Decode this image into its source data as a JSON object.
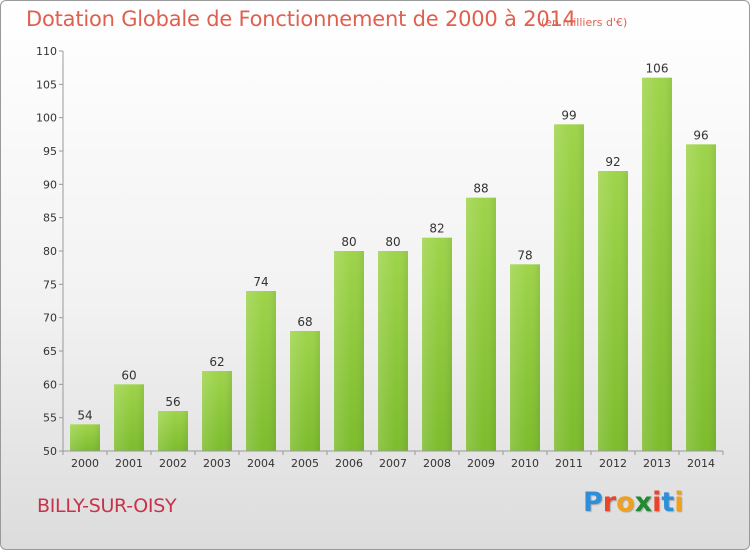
{
  "header": {
    "title": "Dotation Globale de Fonctionnement de 2000 à 2014",
    "unit": "(en milliers d'€)"
  },
  "footer": {
    "commune": "BILLY-SUR-OISY",
    "logo_letters": [
      "P",
      "r",
      "o",
      "x",
      "i",
      "t",
      "i"
    ],
    "logo_colors": [
      "#2e8ed8",
      "#e8452c",
      "#f0a020",
      "#1f8a2e",
      "#e8452c",
      "#2e8ed8",
      "#f0a020"
    ]
  },
  "chart_data": {
    "type": "bar",
    "categories": [
      "2000",
      "2001",
      "2002",
      "2003",
      "2004",
      "2005",
      "2006",
      "2007",
      "2008",
      "2009",
      "2010",
      "2011",
      "2012",
      "2013",
      "2014"
    ],
    "values": [
      54,
      60,
      56,
      62,
      74,
      68,
      80,
      80,
      82,
      88,
      78,
      99,
      92,
      106,
      96
    ],
    "ylim": [
      50,
      110
    ],
    "yticks": [
      50,
      55,
      60,
      65,
      70,
      75,
      80,
      85,
      90,
      95,
      100,
      105,
      110
    ],
    "grid": false,
    "bar_color": "#7cbc2c",
    "bar_color_light": "#9ed44a"
  }
}
